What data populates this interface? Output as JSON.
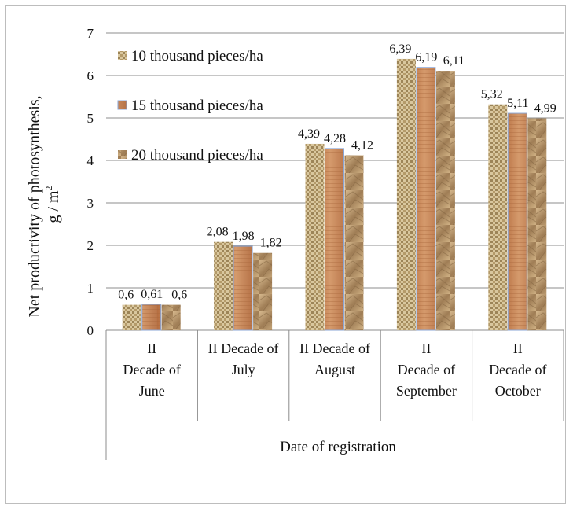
{
  "chart_data": {
    "type": "bar",
    "title": "",
    "ylabel": "Net productivity of photosynthesis, g / m²",
    "ylabel_line1": "Net productivity of photosynthesis,",
    "ylabel_line2": "g / m",
    "ylabel_sup": "2",
    "xlabel": "Date of registration",
    "ylim": [
      0,
      7
    ],
    "yticks": [
      0,
      1,
      2,
      3,
      4,
      5,
      6,
      7
    ],
    "grid": true,
    "legend_position": "top-left",
    "categories": [
      [
        "II",
        "Decade of",
        "June"
      ],
      [
        "II  Decade of",
        "July"
      ],
      [
        "II Decade of",
        "August"
      ],
      [
        "II",
        "Decade of",
        "September"
      ],
      [
        "II",
        "Decade of",
        "October"
      ]
    ],
    "series": [
      {
        "name": "10 thousand pieces/ha",
        "values": [
          0.6,
          2.08,
          4.39,
          6.39,
          5.32
        ],
        "labels": [
          "0,6",
          "2,08",
          "4,39",
          "6,39",
          "5,32"
        ],
        "color": "#c9b48a"
      },
      {
        "name": "15 thousand pieces/ha",
        "values": [
          0.61,
          1.98,
          4.28,
          6.19,
          5.11
        ],
        "labels": [
          "0,61",
          "1,98",
          "4,28",
          "6,19",
          "5,11"
        ],
        "color": "#c98a5c"
      },
      {
        "name": "20 thousand pieces/ha",
        "values": [
          0.6,
          1.82,
          4.12,
          6.11,
          4.99
        ],
        "labels": [
          "0,6",
          "1,82",
          "4,12",
          "6,11",
          "4,99"
        ],
        "color": "#b7966a"
      }
    ]
  }
}
